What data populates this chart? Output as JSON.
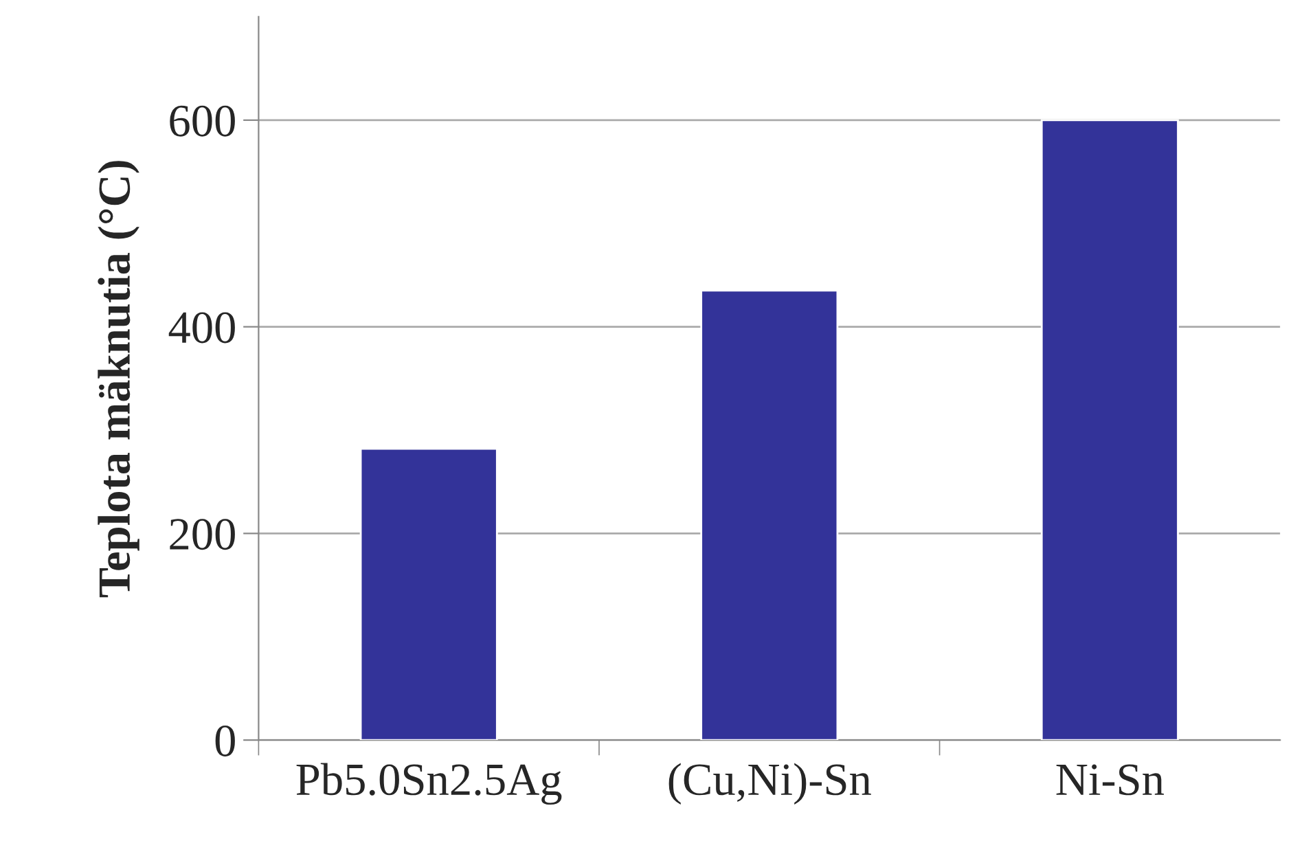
{
  "chart_data": {
    "type": "bar",
    "ylabel": "Teplota mäknutia (°C)",
    "categories": [
      "Pb5.0Sn2.5Ag",
      "(Cu,Ni)-Sn",
      "Ni-Sn"
    ],
    "values": [
      282,
      435,
      600
    ],
    "color": "#333399",
    "ylim": [
      0,
      700
    ],
    "yticks": [
      0,
      200,
      400,
      600
    ],
    "grid": "y",
    "legend": false
  }
}
